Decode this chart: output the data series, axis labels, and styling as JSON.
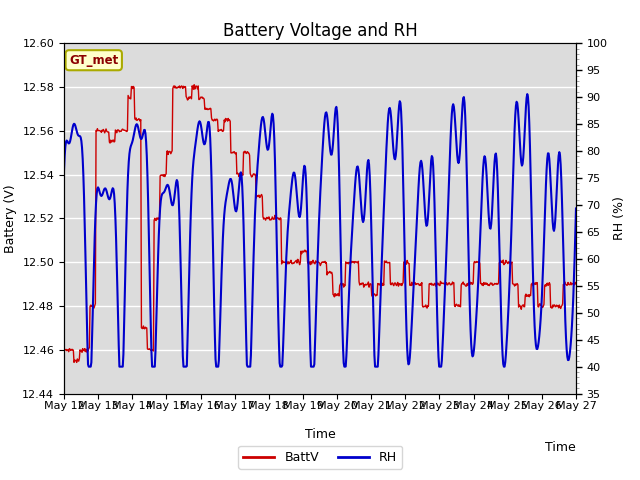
{
  "title": "Battery Voltage and RH",
  "xlabel": "Time",
  "ylabel_left": "Battery (V)",
  "ylabel_right": "RH (%)",
  "ylim_left": [
    12.44,
    12.6
  ],
  "ylim_right": [
    35,
    100
  ],
  "yticks_left": [
    12.44,
    12.46,
    12.48,
    12.5,
    12.52,
    12.54,
    12.56,
    12.58,
    12.6
  ],
  "yticks_right": [
    35,
    40,
    45,
    50,
    55,
    60,
    65,
    70,
    75,
    80,
    85,
    90,
    95,
    100
  ],
  "xtick_labels": [
    "May 12",
    "May 13",
    "May 14",
    "May 15",
    "May 16",
    "May 17",
    "May 18",
    "May 19",
    "May 20",
    "May 21",
    "May 22",
    "May 23",
    "May 24",
    "May 25",
    "May 26",
    "May 27"
  ],
  "label_box_text": "GT_met",
  "label_box_color": "#ffffcc",
  "label_box_edge_color": "#aaaa00",
  "line_batt_color": "#cc0000",
  "line_rh_color": "#0000cc",
  "legend_batt": "BattV",
  "legend_rh": "RH",
  "background_color": "#dcdcdc",
  "fig_background": "#ffffff",
  "title_fontsize": 12,
  "axis_fontsize": 9,
  "tick_fontsize": 8
}
